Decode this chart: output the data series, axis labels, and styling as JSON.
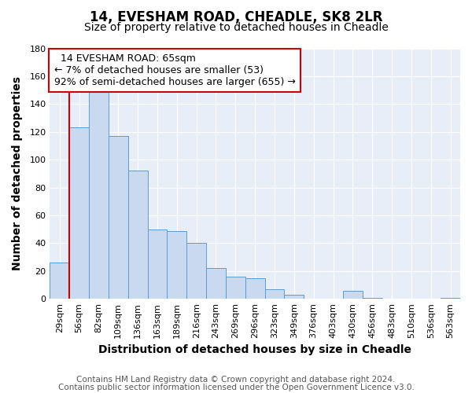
{
  "title": "14, EVESHAM ROAD, CHEADLE, SK8 2LR",
  "subtitle": "Size of property relative to detached houses in Cheadle",
  "xlabel": "Distribution of detached houses by size in Cheadle",
  "ylabel": "Number of detached properties",
  "bar_color": "#c8d9f0",
  "bar_edge_color": "#5b9bd5",
  "categories": [
    "29sqm",
    "56sqm",
    "82sqm",
    "109sqm",
    "136sqm",
    "163sqm",
    "189sqm",
    "216sqm",
    "243sqm",
    "269sqm",
    "296sqm",
    "323sqm",
    "349sqm",
    "376sqm",
    "403sqm",
    "430sqm",
    "456sqm",
    "483sqm",
    "510sqm",
    "536sqm",
    "563sqm"
  ],
  "values": [
    26,
    123,
    150,
    117,
    92,
    50,
    49,
    40,
    22,
    16,
    15,
    7,
    3,
    0,
    0,
    6,
    1,
    0,
    0,
    0,
    1
  ],
  "ylim": [
    0,
    180
  ],
  "yticks": [
    0,
    20,
    40,
    60,
    80,
    100,
    120,
    140,
    160,
    180
  ],
  "red_line_x": 0.5,
  "annotation_line1": "  14 EVESHAM ROAD: 65sqm",
  "annotation_line2": "← 7% of detached houses are smaller (53)",
  "annotation_line3": "92% of semi-detached houses are larger (655) →",
  "annotation_box_color": "#ffffff",
  "annotation_box_edge_color": "#cc0000",
  "plot_bg_color": "#e8eef8",
  "fig_bg_color": "#ffffff",
  "grid_color": "#ffffff",
  "title_fontsize": 12,
  "subtitle_fontsize": 10,
  "axis_label_fontsize": 10,
  "tick_fontsize": 8,
  "annotation_fontsize": 9,
  "footer_fontsize": 7.5,
  "footer_line1": "Contains HM Land Registry data © Crown copyright and database right 2024.",
  "footer_line2": "Contains public sector information licensed under the Open Government Licence v3.0."
}
